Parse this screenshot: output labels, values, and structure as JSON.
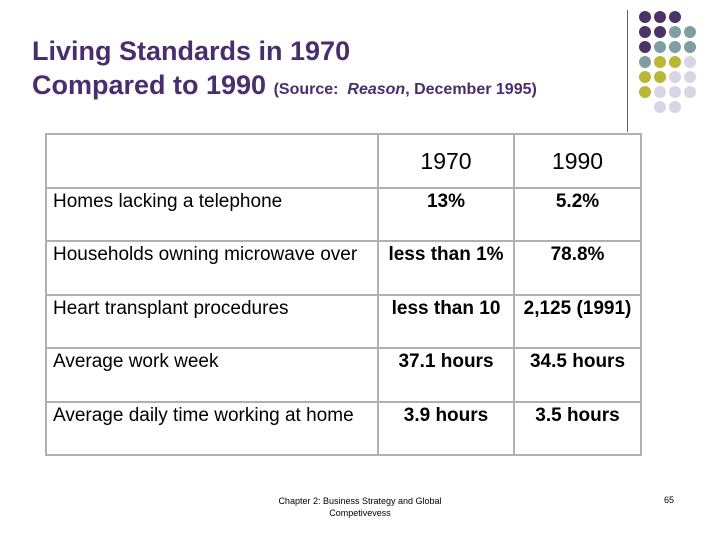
{
  "title": {
    "line1": "Living Standards in 1970",
    "line2": "Compared to 1990",
    "source_open": "(Source:",
    "source_name": "Reason",
    "source_rest": ", December 1995)"
  },
  "table": {
    "header": [
      "1970",
      "1990"
    ],
    "rows": [
      [
        "Homes lacking a telephone",
        "13%",
        "5.2%"
      ],
      [
        "Households owning microwave over",
        "less than 1%",
        "78.8%"
      ],
      [
        "Heart transplant procedures",
        "less than 10",
        "2,125 (1991)"
      ],
      [
        "Average work week",
        "37.1 hours",
        "34.5 hours"
      ],
      [
        "Average daily time working at home",
        "3.9 hours",
        "3.5 hours"
      ]
    ]
  },
  "footer": {
    "text": "Chapter 2: Business Strategy and Global Competivevess",
    "page": "65"
  }
}
